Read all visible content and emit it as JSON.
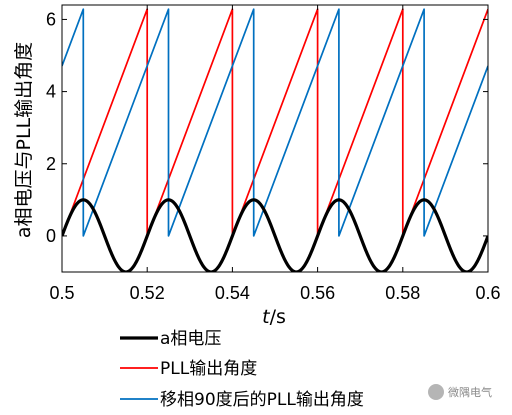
{
  "chart_data": {
    "type": "line",
    "xlabel_italic": "t",
    "xlabel_unit": "/s",
    "ylabel": "a相电压与PLL输出角度",
    "xlim": [
      0.5,
      0.6
    ],
    "ylim": [
      -1.0,
      6.4
    ],
    "x_ticks": [
      0.5,
      0.52,
      0.54,
      0.56,
      0.58,
      0.6
    ],
    "x_tick_labels": [
      "0.5",
      "0.52",
      "0.54",
      "0.56",
      "0.58",
      "0.6"
    ],
    "y_ticks": [
      0,
      2,
      4,
      6
    ],
    "y_tick_labels": [
      "0",
      "2",
      "4",
      "6"
    ],
    "grid": false,
    "legend_position": "bottom",
    "series": [
      {
        "name": "a相电压",
        "color": "#000000",
        "kind": "sine",
        "amplitude": 1.0,
        "frequency_hz": 50,
        "peak_times": [
          0.505,
          0.525,
          0.545,
          0.565,
          0.585
        ],
        "x": [
          0.5,
          0.505,
          0.51,
          0.515,
          0.52,
          0.525,
          0.53,
          0.535,
          0.54,
          0.545,
          0.55,
          0.555,
          0.56,
          0.565,
          0.57,
          0.575,
          0.58,
          0.585,
          0.59,
          0.595,
          0.6
        ],
        "y": [
          0,
          1,
          0,
          -1,
          0,
          1,
          0,
          -1,
          0,
          1,
          0,
          -1,
          0,
          1,
          0,
          -1,
          0,
          1,
          0,
          -1,
          0
        ]
      },
      {
        "name": "PLL输出角度",
        "color": "#ff0000",
        "kind": "sawtooth",
        "x": [
          0.5,
          0.52,
          0.52,
          0.54,
          0.54,
          0.56,
          0.56,
          0.58,
          0.58,
          0.6
        ],
        "y": [
          0,
          6.283,
          0,
          6.283,
          0,
          6.283,
          0,
          6.283,
          0,
          6.283
        ]
      },
      {
        "name": "移相90度后的PLL输出角度",
        "color": "#0070c0",
        "kind": "sawtooth",
        "x": [
          0.5,
          0.505,
          0.505,
          0.525,
          0.525,
          0.545,
          0.545,
          0.565,
          0.565,
          0.585,
          0.585,
          0.6
        ],
        "y": [
          4.712,
          6.283,
          0,
          6.283,
          0,
          6.283,
          0,
          6.283,
          0,
          6.283,
          0,
          4.712
        ]
      }
    ]
  },
  "watermark": {
    "text": "微隅电气",
    "icon": "wechat-icon"
  }
}
